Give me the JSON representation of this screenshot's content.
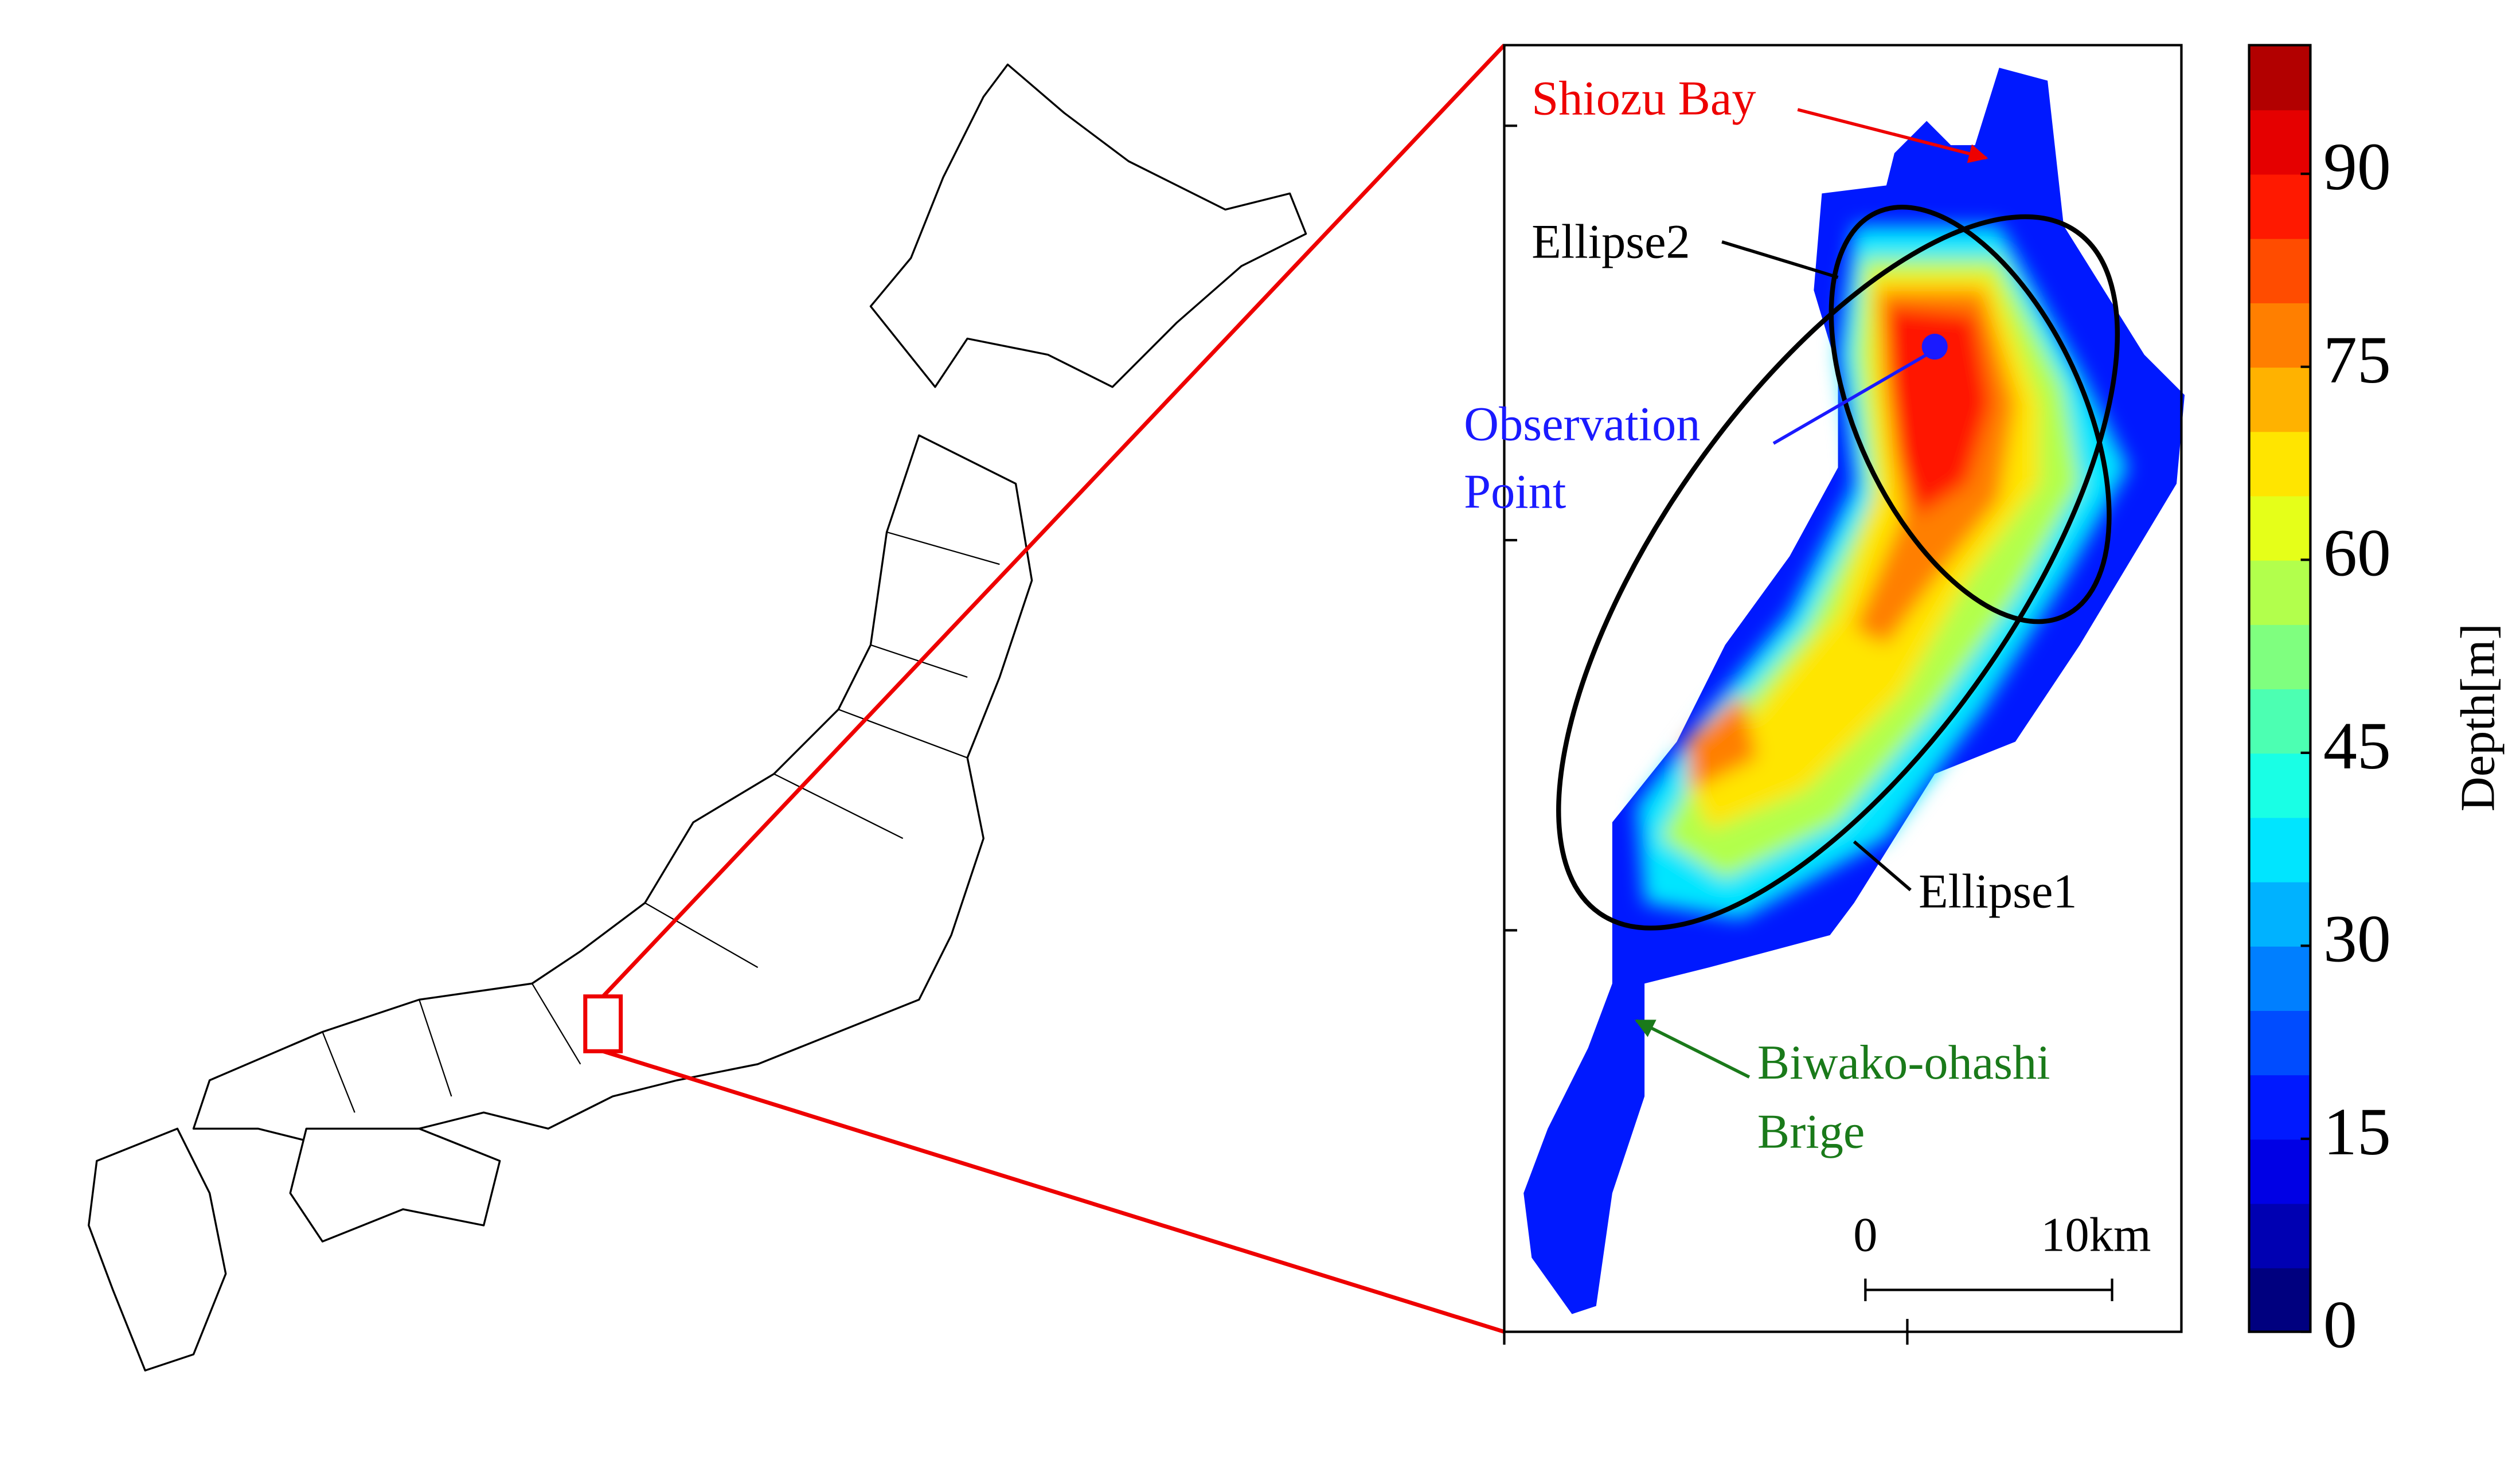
{
  "labels": {
    "shiozu_bay": "Shiozu Bay",
    "ellipse2": "Ellipse2",
    "observation_point": [
      "Observation",
      "Point"
    ],
    "ellipse1": "Ellipse1",
    "bridge": [
      "Biwako-ohashi",
      "Brige"
    ]
  },
  "scale_bar": {
    "start": "0",
    "end": "10km"
  },
  "colorbar": {
    "label": "Depth[m]",
    "lim": [
      0,
      100
    ],
    "ticks": [
      0,
      15,
      30,
      45,
      60,
      75,
      90
    ],
    "colors": [
      "#00007f",
      "#0000b2",
      "#0000e5",
      "#0019ff",
      "#004cff",
      "#007fff",
      "#00b2ff",
      "#00e5ff",
      "#19ffe5",
      "#4cffb2",
      "#7fff7f",
      "#b2ff4c",
      "#e5ff19",
      "#ffe500",
      "#ffb200",
      "#ff7f00",
      "#ff4c00",
      "#ff1900",
      "#e50000",
      "#b20000"
    ]
  }
}
